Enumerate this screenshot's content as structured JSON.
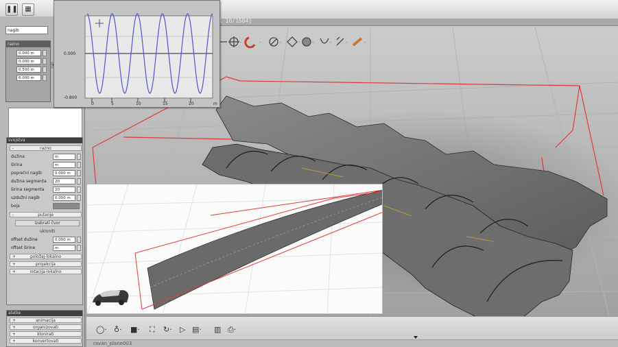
{
  "graph": {
    "y_zero_label": "0.000",
    "y_bottom_label": "-0.800",
    "x_ticks": [
      "0",
      "5",
      "10",
      "15",
      "20"
    ],
    "x_unit": "m",
    "curve_color": "#5b5bd6"
  },
  "left_panel": {
    "property_name": "nagib",
    "razno_header": "razno",
    "razno_values": [
      "0.000 m",
      "0.000 m",
      "0.500 m",
      "6.000 m"
    ]
  },
  "svojstva": {
    "header": "svojstva",
    "razno_section": "razno",
    "properties": [
      {
        "label": "dužina",
        "value": "m"
      },
      {
        "label": "širina",
        "value": "m"
      },
      {
        "label": "poprečni nagib",
        "value": "0.000 m"
      },
      {
        "label": "dužina segmenta",
        "value": "20"
      },
      {
        "label": "širina segmenta",
        "value": "20"
      },
      {
        "label": "uzdužni nagib",
        "value": "0.000 m"
      },
      {
        "label": "boja",
        "value": ""
      }
    ],
    "putanje_section": "putanje",
    "izaberi_button": "izabrati čvor",
    "ukloniti_button": "ukloniti",
    "offset_props": [
      {
        "label": "offset dužine",
        "value": "0.000 m"
      },
      {
        "label": "offset širine",
        "value": "m"
      }
    ],
    "collapsed_sections": [
      "položaj-lokalno",
      "projekcija",
      "rotacija-lokalno"
    ]
  },
  "alatke": {
    "header": "alatke",
    "items": [
      "animacija",
      "organizovati",
      "klonirati",
      "konvertovati"
    ]
  },
  "viewport": {
    "title_fragment": "1 10/1504]",
    "status_fragment": "ravan_plane003"
  },
  "colors": {
    "bounding_box": "#e03a3a",
    "terrain": "#6a6a6a",
    "panel_header": "#3f3f3f"
  }
}
